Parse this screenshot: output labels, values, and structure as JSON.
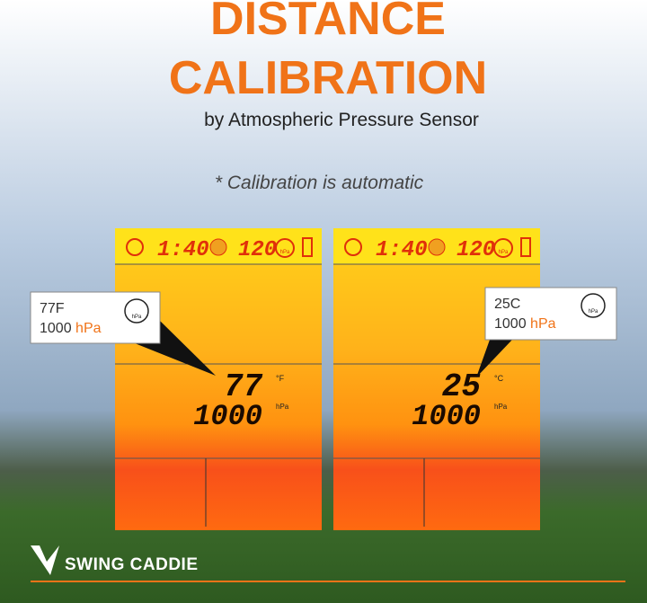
{
  "header": {
    "title_lines": [
      "DISTANCE",
      "CALIBRATION"
    ],
    "subtitle": "by Atmospheric Pressure Sensor",
    "note": "* Calibration is automatic"
  },
  "screens": [
    {
      "time": "1:40",
      "number": "120",
      "gauge_unit": "hPa",
      "temperature": "77",
      "temperature_unit": "°F",
      "pressure": "1000",
      "pressure_unit": "hPa",
      "callout": {
        "temperature": "77F",
        "pressure": "1000",
        "pressure_unit": "hPa",
        "gauge_unit": "hPa"
      }
    },
    {
      "time": "1:40",
      "number": "120",
      "gauge_unit": "hPa",
      "temperature": "25",
      "temperature_unit": "°C",
      "pressure": "1000",
      "pressure_unit": "hPa",
      "callout": {
        "temperature": "25C",
        "pressure": "1000",
        "pressure_unit": "hPa",
        "gauge_unit": "hPa"
      }
    }
  ],
  "brand": "SWING CADDIE"
}
